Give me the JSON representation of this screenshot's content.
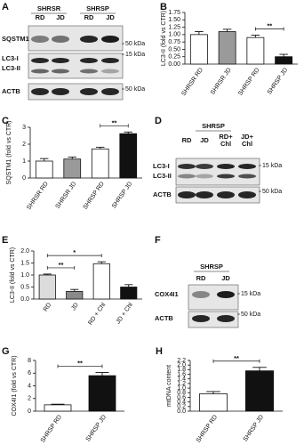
{
  "blots": [
    {
      "panel": "A",
      "groups": [
        "SHRSR",
        "SHRSP"
      ],
      "lanes": [
        [
          "RD"
        ],
        [
          "JD"
        ],
        [
          "RD"
        ],
        [
          "JD"
        ]
      ],
      "proteins": [
        "SQSTM1",
        "LC3-I",
        "LC3-II",
        "ACTB"
      ],
      "markers": [
        "50 kDa",
        "15 kDa",
        "50 kDa"
      ]
    },
    {
      "panel": "D",
      "groups": [
        "SHRSP"
      ],
      "lanes": [
        [
          "RD"
        ],
        [
          "JD"
        ],
        [
          "RD+",
          "Chl"
        ],
        [
          "JD+",
          "Chl"
        ]
      ],
      "proteins": [
        "LC3-I",
        "LC3-II",
        "ACTB"
      ],
      "markers": [
        "15 kDa",
        "50 kDa"
      ]
    },
    {
      "panel": "F",
      "groups": [
        "SHRSP"
      ],
      "lanes": [
        [
          "RD"
        ],
        [
          "JD"
        ]
      ],
      "proteins": [
        "COX4I1",
        "ACTB"
      ],
      "markers": [
        "15 kDa",
        "50 kDa"
      ]
    }
  ],
  "chart_data": [
    {
      "type": "bar",
      "panel": "B",
      "ylabel": "LC3-II (fold vs CTR)",
      "categories": [
        "SHRSR RD",
        "SHRSR JD",
        "SHRSP RD",
        "SHRSP JD"
      ],
      "values": [
        1.0,
        1.1,
        0.9,
        0.25
      ],
      "errors": [
        0.1,
        0.08,
        0.08,
        0.08
      ],
      "colors": [
        "#ffffff",
        "#9a9a9a",
        "#ffffff",
        "#111111"
      ],
      "ylim": [
        0,
        1.75
      ],
      "yticks": [
        {
          "value": 0,
          "label": "0.00"
        },
        0.25,
        {
          "value": 0.5,
          "label": "0.50"
        },
        0.75,
        {
          "value": 1,
          "label": "1.00"
        },
        1.25,
        {
          "value": 1.5,
          "label": "1.50"
        },
        1.75
      ],
      "annotations": [
        {
          "text": "**",
          "from": 2,
          "to": 3
        }
      ]
    },
    {
      "type": "bar",
      "panel": "C",
      "ylabel": "SQSTM1 (fold vs CTR)",
      "categories": [
        "SHRSR RD",
        "SHRSR JD",
        "SHRSP RD",
        "SHRSP JD"
      ],
      "values": [
        1.0,
        1.12,
        1.72,
        2.62
      ],
      "errors": [
        0.15,
        0.12,
        0.1,
        0.1
      ],
      "colors": [
        "#ffffff",
        "#9a9a9a",
        "#ffffff",
        "#111111"
      ],
      "ylim": [
        0,
        3
      ],
      "yticks": [
        0,
        1,
        2,
        3
      ],
      "annotations": [
        {
          "text": "**",
          "from": 2,
          "to": 3
        }
      ]
    },
    {
      "type": "bar",
      "panel": "E",
      "ylabel": "LC3-II (fold vs CTR)",
      "categories": [
        "RD",
        "JD",
        "RD + Chl",
        "JD + Chl"
      ],
      "values": [
        1.0,
        0.32,
        1.47,
        0.5
      ],
      "errors": [
        0.04,
        0.08,
        0.08,
        0.1
      ],
      "colors": [
        "#dcdcdc",
        "#8a8a8a",
        "#ffffff",
        "#111111"
      ],
      "ylim": [
        0,
        2
      ],
      "yticks": [
        {
          "value": 0,
          "label": "0.0"
        },
        0.5,
        {
          "value": 1,
          "label": "1.0"
        },
        1.5,
        {
          "value": 2,
          "label": "2.0"
        }
      ],
      "annotations": [
        {
          "text": "**",
          "from": 0,
          "to": 1
        },
        {
          "text": "*",
          "from": 0,
          "to": 2
        }
      ]
    },
    {
      "type": "bar",
      "panel": "G",
      "ylabel": "COX4I1 (fold vs CTR)",
      "categories": [
        "SHRSP RD",
        "SHRSP JD"
      ],
      "values": [
        1.0,
        5.6
      ],
      "errors": [
        0.1,
        0.5
      ],
      "colors": [
        "#ffffff",
        "#111111"
      ],
      "ylim": [
        0,
        8
      ],
      "yticks": [
        0,
        2,
        4,
        6,
        8
      ],
      "annotations": [
        {
          "text": "**",
          "from": 0,
          "to": 1
        }
      ]
    },
    {
      "type": "bar",
      "panel": "H",
      "ylabel": "mtDNA content",
      "categories": [
        "SHRSP RD",
        "SHRSP JD"
      ],
      "values": [
        0.75,
        1.75
      ],
      "errors": [
        0.1,
        0.15
      ],
      "colors": [
        "#ffffff",
        "#111111"
      ],
      "ylim": [
        0,
        2.2
      ],
      "yticks": [
        {
          "value": 0,
          "label": "0.0"
        },
        0.2,
        0.4,
        0.6,
        0.8,
        {
          "value": 1,
          "label": "1.0"
        },
        1.2,
        1.4,
        1.6,
        1.8,
        {
          "value": 2,
          "label": "2.0"
        },
        2.2
      ],
      "annotations": [
        {
          "text": "**",
          "from": 0,
          "to": 1
        }
      ]
    }
  ]
}
